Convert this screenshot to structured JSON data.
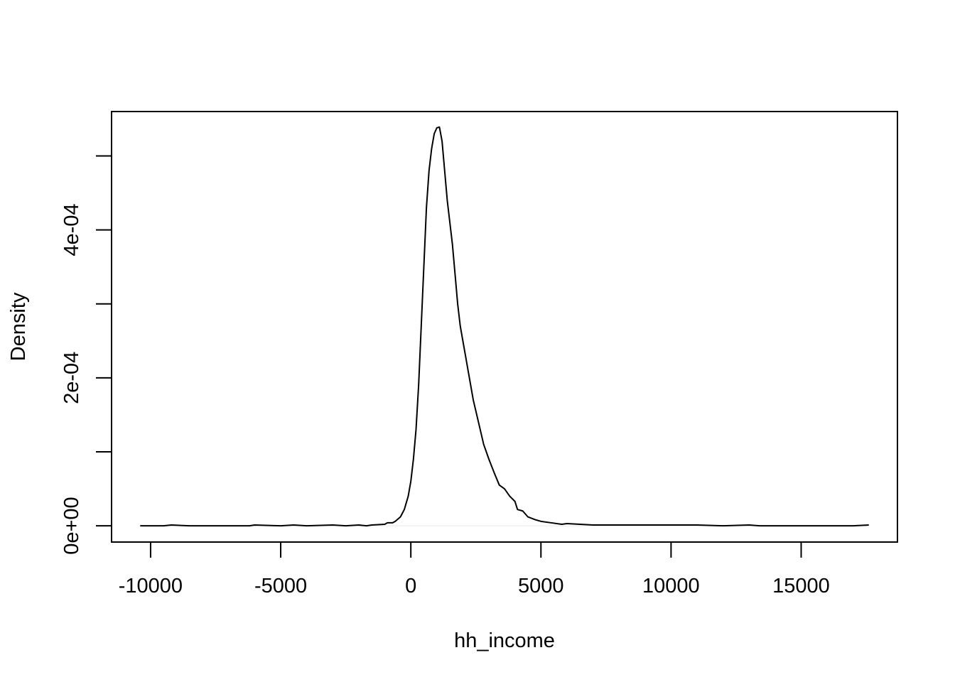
{
  "chart_data": {
    "type": "line",
    "title": "",
    "xlabel": "hh_income",
    "ylabel": "Density",
    "xlim": [
      -11500,
      18700
    ],
    "ylim": [
      -2.2e-05,
      0.00056
    ],
    "x_ticks": [
      -10000,
      -5000,
      0,
      5000,
      10000,
      15000
    ],
    "x_tick_labels": [
      "-10000",
      "-5000",
      "0",
      "5000",
      "10000",
      "15000"
    ],
    "y_ticks": [
      0,
      0.0001,
      0.0002,
      0.0003,
      0.0004,
      0.0005
    ],
    "y_tick_labels": [
      "0e+00",
      "",
      "2e-04",
      "",
      "4e-04",
      ""
    ],
    "baseline_y": 0,
    "grid": false,
    "legend": "none",
    "colors": {
      "line": "#000000",
      "axis": "#000000",
      "baseline": "#e6e6e6"
    },
    "series": [
      {
        "x": [
          -10400,
          -9500,
          -9200,
          -8500,
          -7000,
          -6200,
          -6000,
          -5000,
          -4500,
          -4000,
          -3000,
          -2500,
          -2000,
          -1700,
          -1500,
          -1000,
          -900,
          -700,
          -600,
          -400,
          -250,
          -100,
          0,
          100,
          200,
          300,
          400,
          500,
          600,
          700,
          800,
          900,
          1000,
          1100,
          1200,
          1300,
          1400,
          1500,
          1600,
          1700,
          1800,
          1900,
          2000,
          2100,
          2200,
          2400,
          2600,
          2800,
          3000,
          3200,
          3400,
          3600,
          3800,
          4000,
          4100,
          4300,
          4500,
          4800,
          5000,
          5400,
          5800,
          6000,
          6500,
          7000,
          7500,
          8000,
          8500,
          9000,
          10000,
          11000,
          12000,
          13000,
          13400,
          14000,
          15000,
          16000,
          17000,
          17600
        ],
        "y": [
          0,
          0,
          1e-06,
          0,
          0,
          0,
          1e-06,
          0,
          1e-06,
          0,
          1e-06,
          0,
          1e-06,
          0,
          1e-06,
          2e-06,
          4e-06,
          4e-06,
          6e-06,
          1.2e-05,
          2.2e-05,
          4e-05,
          6e-05,
          9e-05,
          0.00013,
          0.00019,
          0.00027,
          0.00035,
          0.00043,
          0.00048,
          0.00051,
          0.00053,
          0.000538,
          0.000539,
          0.00052,
          0.00048,
          0.00044,
          0.00041,
          0.00038,
          0.00034,
          0.0003,
          0.00027,
          0.00025,
          0.00023,
          0.00021,
          0.00017,
          0.00014,
          0.00011,
          9e-05,
          7.2e-05,
          5.5e-05,
          5e-05,
          4e-05,
          3.3e-05,
          2.2e-05,
          2e-05,
          1.2e-05,
          8e-06,
          6e-06,
          4e-06,
          2e-06,
          3e-06,
          2e-06,
          1e-06,
          1e-06,
          1e-06,
          1e-06,
          1e-06,
          1e-06,
          1e-06,
          0,
          1e-06,
          0,
          0,
          0,
          0,
          0,
          1e-06
        ]
      }
    ]
  }
}
